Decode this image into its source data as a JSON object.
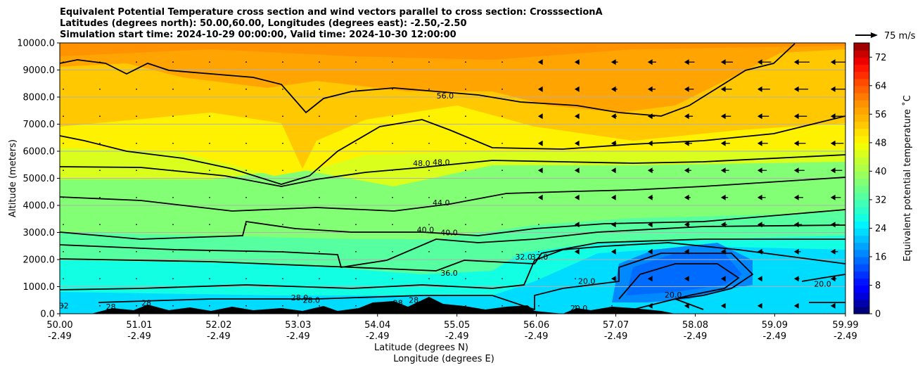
{
  "chart_data": {
    "type": "heatmap",
    "title_lines": [
      "Equivalent Potential Temperature cross section and wind vectors parallel to cross section: CrosssectionA",
      "Latitudes (degrees north): 50.00,60.00, Longitudes (degrees east): -2.50,-2.50",
      "Simulation start time: 2024-10-29 00:00:00, Valid time: 2024-10-30 12:00:00"
    ],
    "ylabel": "Altitude (meters)",
    "xlabel_lines": [
      "Latitude (degrees N)",
      "Longitude (degrees E)"
    ],
    "ylim": [
      0,
      10000
    ],
    "y_ticks": [
      "0.0",
      "1000.0",
      "2000.0",
      "3000.0",
      "4000.0",
      "5000.0",
      "6000.0",
      "7000.0",
      "8000.0",
      "9000.0",
      "10000.0"
    ],
    "x_ticks": [
      {
        "lat": "50.00",
        "lon": "-2.49"
      },
      {
        "lat": "51.01",
        "lon": "-2.49"
      },
      {
        "lat": "52.02",
        "lon": "-2.49"
      },
      {
        "lat": "53.03",
        "lon": "-2.49"
      },
      {
        "lat": "54.04",
        "lon": "-2.49"
      },
      {
        "lat": "55.05",
        "lon": "-2.49"
      },
      {
        "lat": "56.06",
        "lon": "-2.49"
      },
      {
        "lat": "57.07",
        "lon": "-2.49"
      },
      {
        "lat": "58.08",
        "lon": "-2.49"
      },
      {
        "lat": "59.09",
        "lon": "-2.49"
      },
      {
        "lat": "59.99",
        "lon": "-2.49"
      }
    ],
    "x_range": [
      50.0,
      59.99
    ],
    "colorbar": {
      "label": "Equivalent potential temperature ˚C",
      "min": 0,
      "max": 76,
      "step": 2,
      "ticks": [
        "0",
        "8",
        "16",
        "24",
        "32",
        "40",
        "48",
        "56",
        "64",
        "72"
      ]
    },
    "quiver_key": {
      "label": "75 m/s",
      "speed": 75
    },
    "contour_labels": [
      {
        "text": "56.0",
        "lat": 54.9,
        "alt": 7950
      },
      {
        "text": "48.0",
        "lat": 54.6,
        "alt": 5450
      },
      {
        "text": "48.0",
        "lat": 54.85,
        "alt": 5500
      },
      {
        "text": "44.0",
        "lat": 54.85,
        "alt": 4000
      },
      {
        "text": "40.0",
        "lat": 54.65,
        "alt": 3000
      },
      {
        "text": "40.0",
        "lat": 54.95,
        "alt": 2900
      },
      {
        "text": "36.0",
        "lat": 54.95,
        "alt": 1400
      },
      {
        "text": "32.0",
        "lat": 55.9,
        "alt": 2000
      },
      {
        "text": "32.0",
        "lat": 56.1,
        "alt": 2000
      },
      {
        "text": "28.0",
        "lat": 53.05,
        "alt": 500
      },
      {
        "text": "28.0",
        "lat": 53.2,
        "alt": 400
      },
      {
        "text": "28",
        "lat": 54.3,
        "alt": 300
      },
      {
        "text": "28",
        "lat": 54.5,
        "alt": 400
      },
      {
        "text": "28",
        "lat": 51.1,
        "alt": 300
      },
      {
        "text": "28",
        "lat": 50.65,
        "alt": 150
      },
      {
        "text": "32",
        "lat": 50.05,
        "alt": 200
      },
      {
        "text": "20.0",
        "lat": 56.7,
        "alt": 1100
      },
      {
        "text": "20.0",
        "lat": 56.6,
        "alt": 100
      },
      {
        "text": "20.0",
        "lat": 57.8,
        "alt": 600
      },
      {
        "text": "20.0",
        "lat": 59.7,
        "alt": 1000
      }
    ],
    "palette": [
      "#00007f",
      "#0000ad",
      "#0000da",
      "#0000ff",
      "#0014ff",
      "#0032ff",
      "#0050ff",
      "#006cff",
      "#0088ff",
      "#00a4ff",
      "#00c0ff",
      "#00dcff",
      "#00f4ff",
      "#13ffe3",
      "#2affcc",
      "#40ffb6",
      "#56ffa0",
      "#6cff8a",
      "#82ff74",
      "#98ff5e",
      "#aeff48",
      "#c4ff32",
      "#daff1c",
      "#f0ff06",
      "#fff200",
      "#ffe000",
      "#ffc800",
      "#ffb600",
      "#ffa400",
      "#ff9200",
      "#ff7a00",
      "#ff6200",
      "#ff4a00",
      "#ff2e00",
      "#ff1400",
      "#ef0000",
      "#c80000",
      "#a00000"
    ]
  }
}
